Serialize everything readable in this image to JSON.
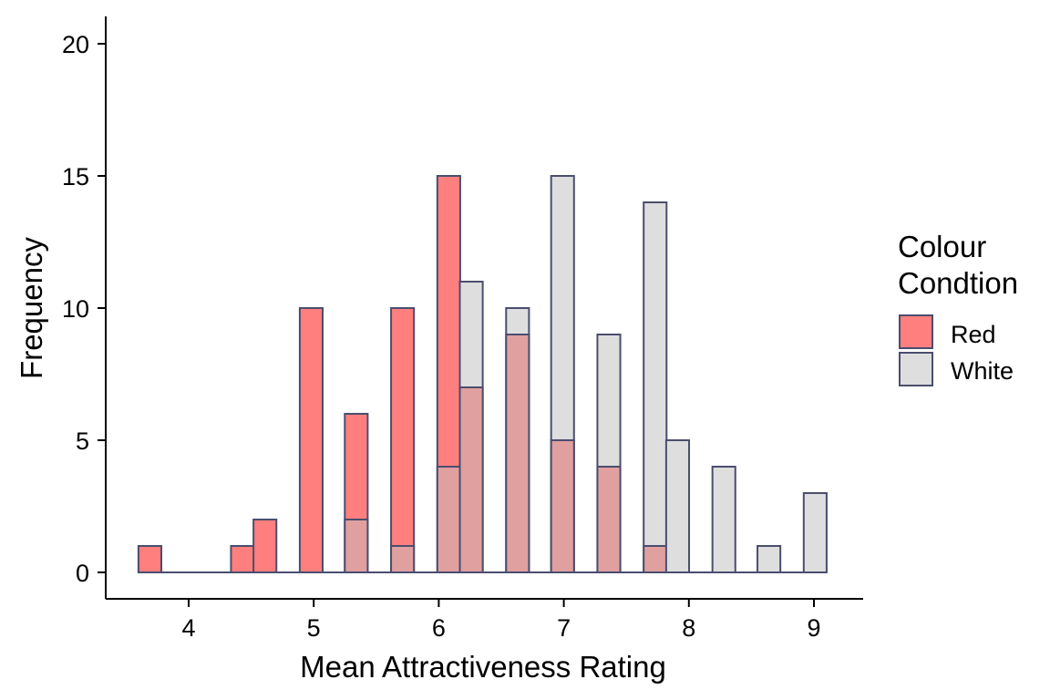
{
  "chart_data": {
    "type": "bar",
    "subtype": "overlapping-histogram",
    "xlabel": "Mean Attractiveness Rating",
    "ylabel": "Frequency",
    "xlim": [
      3.6,
      9.1
    ],
    "ylim": [
      0,
      20
    ],
    "xticks": [
      4,
      5,
      6,
      7,
      8,
      9
    ],
    "yticks": [
      0,
      5,
      10,
      15,
      20
    ],
    "bin_width": 0.183,
    "legend": {
      "title_lines": [
        "Colour",
        "Condtion"
      ],
      "placement": "right",
      "entries": [
        "Red",
        "White"
      ]
    },
    "series": [
      {
        "name": "Red",
        "color": "#FF7F7F",
        "bins": [
          {
            "x": 3.69,
            "y": 1
          },
          {
            "x": 3.88,
            "y": 0
          },
          {
            "x": 4.06,
            "y": 0
          },
          {
            "x": 4.24,
            "y": 0
          },
          {
            "x": 4.43,
            "y": 1
          },
          {
            "x": 4.61,
            "y": 2
          },
          {
            "x": 4.79,
            "y": 0
          },
          {
            "x": 4.98,
            "y": 10
          },
          {
            "x": 5.16,
            "y": 0
          },
          {
            "x": 5.34,
            "y": 6
          },
          {
            "x": 5.53,
            "y": 0
          },
          {
            "x": 5.71,
            "y": 10
          },
          {
            "x": 5.89,
            "y": 0
          },
          {
            "x": 6.08,
            "y": 15
          },
          {
            "x": 6.26,
            "y": 7
          },
          {
            "x": 6.44,
            "y": 0
          },
          {
            "x": 6.63,
            "y": 9
          },
          {
            "x": 6.81,
            "y": 0
          },
          {
            "x": 6.99,
            "y": 5
          },
          {
            "x": 7.18,
            "y": 0
          },
          {
            "x": 7.36,
            "y": 4
          },
          {
            "x": 7.54,
            "y": 0
          },
          {
            "x": 7.73,
            "y": 1
          },
          {
            "x": 7.91,
            "y": 0
          },
          {
            "x": 8.09,
            "y": 0
          },
          {
            "x": 8.28,
            "y": 0
          },
          {
            "x": 8.46,
            "y": 0
          },
          {
            "x": 8.64,
            "y": 0
          },
          {
            "x": 8.83,
            "y": 0
          },
          {
            "x": 9.01,
            "y": 0
          }
        ]
      },
      {
        "name": "White",
        "color": "#DEDEDE",
        "bins": [
          {
            "x": 3.69,
            "y": 0
          },
          {
            "x": 3.88,
            "y": 0
          },
          {
            "x": 4.06,
            "y": 0
          },
          {
            "x": 4.24,
            "y": 0
          },
          {
            "x": 4.43,
            "y": 0
          },
          {
            "x": 4.61,
            "y": 0
          },
          {
            "x": 4.79,
            "y": 0
          },
          {
            "x": 4.98,
            "y": 0
          },
          {
            "x": 5.16,
            "y": 0
          },
          {
            "x": 5.34,
            "y": 2
          },
          {
            "x": 5.53,
            "y": 0
          },
          {
            "x": 5.71,
            "y": 1
          },
          {
            "x": 5.89,
            "y": 0
          },
          {
            "x": 6.08,
            "y": 4
          },
          {
            "x": 6.26,
            "y": 11
          },
          {
            "x": 6.44,
            "y": 0
          },
          {
            "x": 6.63,
            "y": 10
          },
          {
            "x": 6.81,
            "y": 0
          },
          {
            "x": 6.99,
            "y": 15
          },
          {
            "x": 7.18,
            "y": 0
          },
          {
            "x": 7.36,
            "y": 9
          },
          {
            "x": 7.54,
            "y": 0
          },
          {
            "x": 7.73,
            "y": 14
          },
          {
            "x": 7.91,
            "y": 5
          },
          {
            "x": 8.09,
            "y": 0
          },
          {
            "x": 8.28,
            "y": 4
          },
          {
            "x": 8.46,
            "y": 0
          },
          {
            "x": 8.64,
            "y": 1
          },
          {
            "x": 8.83,
            "y": 0
          },
          {
            "x": 9.01,
            "y": 3
          }
        ]
      }
    ],
    "overlap_color": "#E0A0A0",
    "bar_outline_color": "#4A4E6E"
  }
}
